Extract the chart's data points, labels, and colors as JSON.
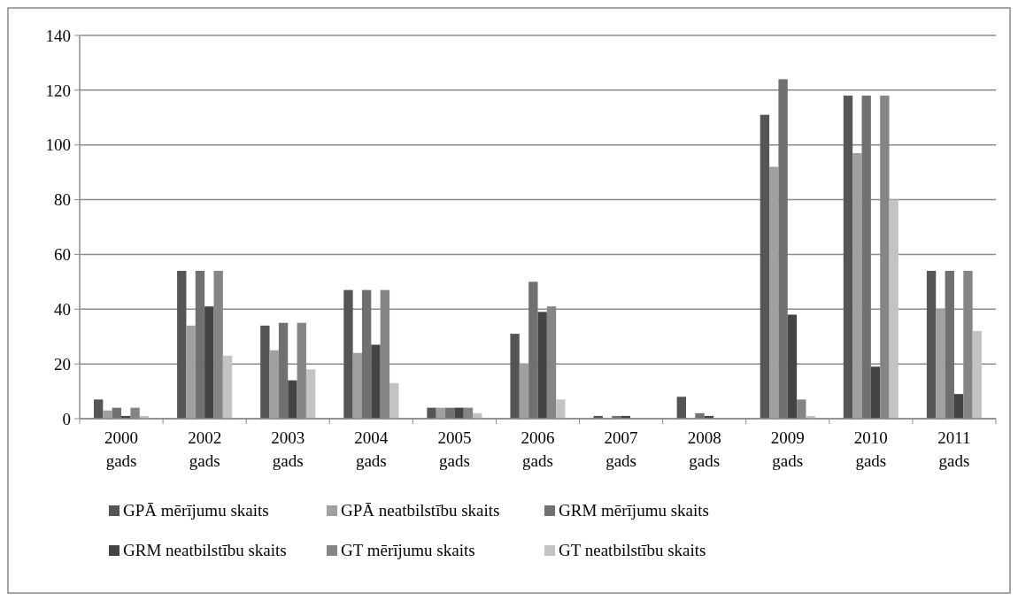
{
  "chart_data": {
    "type": "bar",
    "categories": [
      "2000 gads",
      "2002 gads",
      "2003 gads",
      "2004 gads",
      "2005 gads",
      "2006 gads",
      "2007 gads",
      "2008 gads",
      "2009 gads",
      "2010 gads",
      "2011 gads"
    ],
    "series": [
      {
        "name": "GPĀ mērījumu skaits",
        "color": "#555555",
        "values": [
          7,
          54,
          34,
          47,
          4,
          31,
          1,
          8,
          111,
          118,
          54
        ]
      },
      {
        "name": "GPĀ neatbilstību skaits",
        "color": "#a0a0a0",
        "values": [
          3,
          34,
          25,
          24,
          4,
          20,
          0,
          0,
          92,
          97,
          40
        ]
      },
      {
        "name": "GRM mērījumu skaits",
        "color": "#707070",
        "values": [
          4,
          54,
          35,
          47,
          4,
          50,
          1,
          2,
          124,
          118,
          54
        ]
      },
      {
        "name": "GRM neatbilstību skaits",
        "color": "#444444",
        "values": [
          1,
          41,
          14,
          27,
          4,
          39,
          1,
          1,
          38,
          19,
          9
        ]
      },
      {
        "name": "GT mērījumu skaits",
        "color": "#858585",
        "values": [
          4,
          54,
          35,
          47,
          4,
          41,
          0,
          0,
          7,
          118,
          54
        ]
      },
      {
        "name": "GT neatbilstību skaits",
        "color": "#c3c3c3",
        "values": [
          1,
          23,
          18,
          13,
          2,
          7,
          0,
          0,
          1,
          80,
          32
        ]
      }
    ],
    "ylim": [
      0,
      140
    ],
    "yticks": [
      0,
      20,
      40,
      60,
      80,
      100,
      120,
      140
    ],
    "grid": "y",
    "legend": "bottom"
  }
}
